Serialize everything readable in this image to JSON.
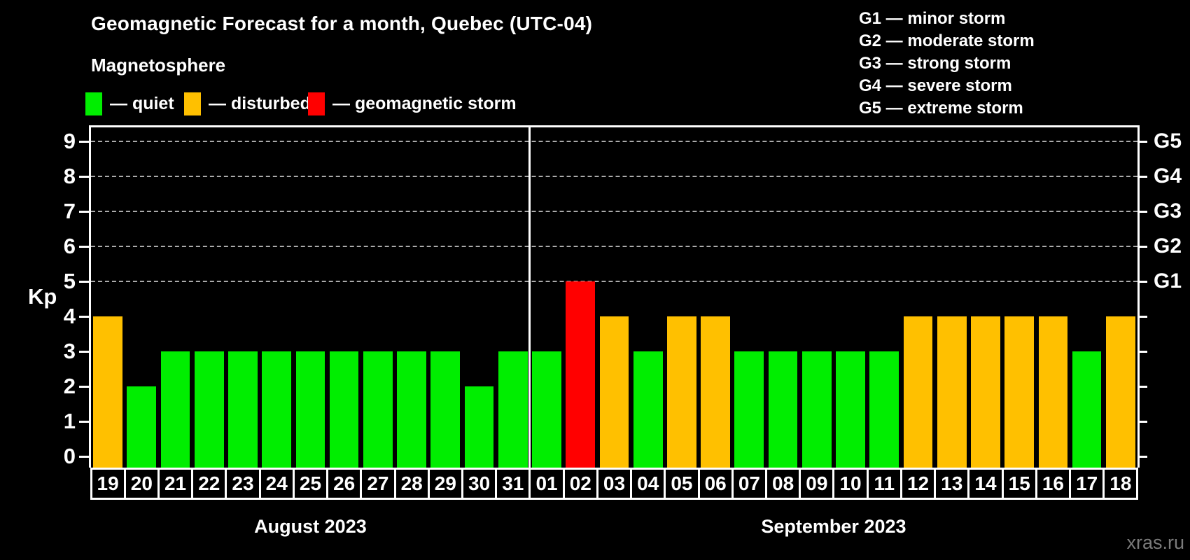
{
  "title": "Geomagnetic Forecast for a month, Quebec (UTC-04)",
  "subtitle": "Magnetosphere",
  "legend": {
    "items": [
      {
        "key": "quiet",
        "label": "— quiet",
        "color": "#00ee00"
      },
      {
        "key": "disturbed",
        "label": "— disturbed",
        "color": "#ffc000"
      },
      {
        "key": "storm",
        "label": "— geomagnetic storm",
        "color": "#ff0000"
      }
    ]
  },
  "g_legend": [
    "G1 — minor storm",
    "G2 — moderate storm",
    "G3 — strong storm",
    "G4 — severe storm",
    "G5 — extreme storm"
  ],
  "watermark": "xras.ru",
  "chart_data": {
    "type": "bar",
    "title": "Geomagnetic Forecast for a month, Quebec (UTC-04)",
    "ylabel": "Kp",
    "ylim": [
      0,
      9
    ],
    "yticks": [
      0,
      1,
      2,
      3,
      4,
      5,
      6,
      7,
      8,
      9
    ],
    "gridlines_at": [
      5,
      6,
      7,
      8,
      9
    ],
    "grid": "dashed, only at storm levels 5-9",
    "legend_position": "top",
    "right_axis": [
      {
        "level": 5,
        "label": "G1"
      },
      {
        "level": 6,
        "label": "G2"
      },
      {
        "level": 7,
        "label": "G3"
      },
      {
        "level": 8,
        "label": "G4"
      },
      {
        "level": 9,
        "label": "G5"
      }
    ],
    "months": [
      {
        "label": "August 2023",
        "days": 13
      },
      {
        "label": "September 2023",
        "days": 18
      }
    ],
    "categories": [
      "19",
      "20",
      "21",
      "22",
      "23",
      "24",
      "25",
      "26",
      "27",
      "28",
      "29",
      "30",
      "31",
      "01",
      "02",
      "03",
      "04",
      "05",
      "06",
      "07",
      "08",
      "09",
      "10",
      "11",
      "12",
      "13",
      "14",
      "15",
      "16",
      "17",
      "18"
    ],
    "values": [
      4,
      2,
      3,
      3,
      3,
      3,
      3,
      3,
      3,
      3,
      3,
      2,
      3,
      3,
      5,
      4,
      3,
      4,
      4,
      3,
      3,
      3,
      3,
      3,
      4,
      4,
      4,
      4,
      4,
      3,
      4
    ],
    "statuses": [
      "disturbed",
      "quiet",
      "quiet",
      "quiet",
      "quiet",
      "quiet",
      "quiet",
      "quiet",
      "quiet",
      "quiet",
      "quiet",
      "quiet",
      "quiet",
      "quiet",
      "storm",
      "disturbed",
      "quiet",
      "disturbed",
      "disturbed",
      "quiet",
      "quiet",
      "quiet",
      "quiet",
      "quiet",
      "disturbed",
      "disturbed",
      "disturbed",
      "disturbed",
      "disturbed",
      "quiet",
      "disturbed"
    ],
    "status_colors": {
      "quiet": "#00ee00",
      "disturbed": "#ffc000",
      "storm": "#ff0000"
    }
  }
}
